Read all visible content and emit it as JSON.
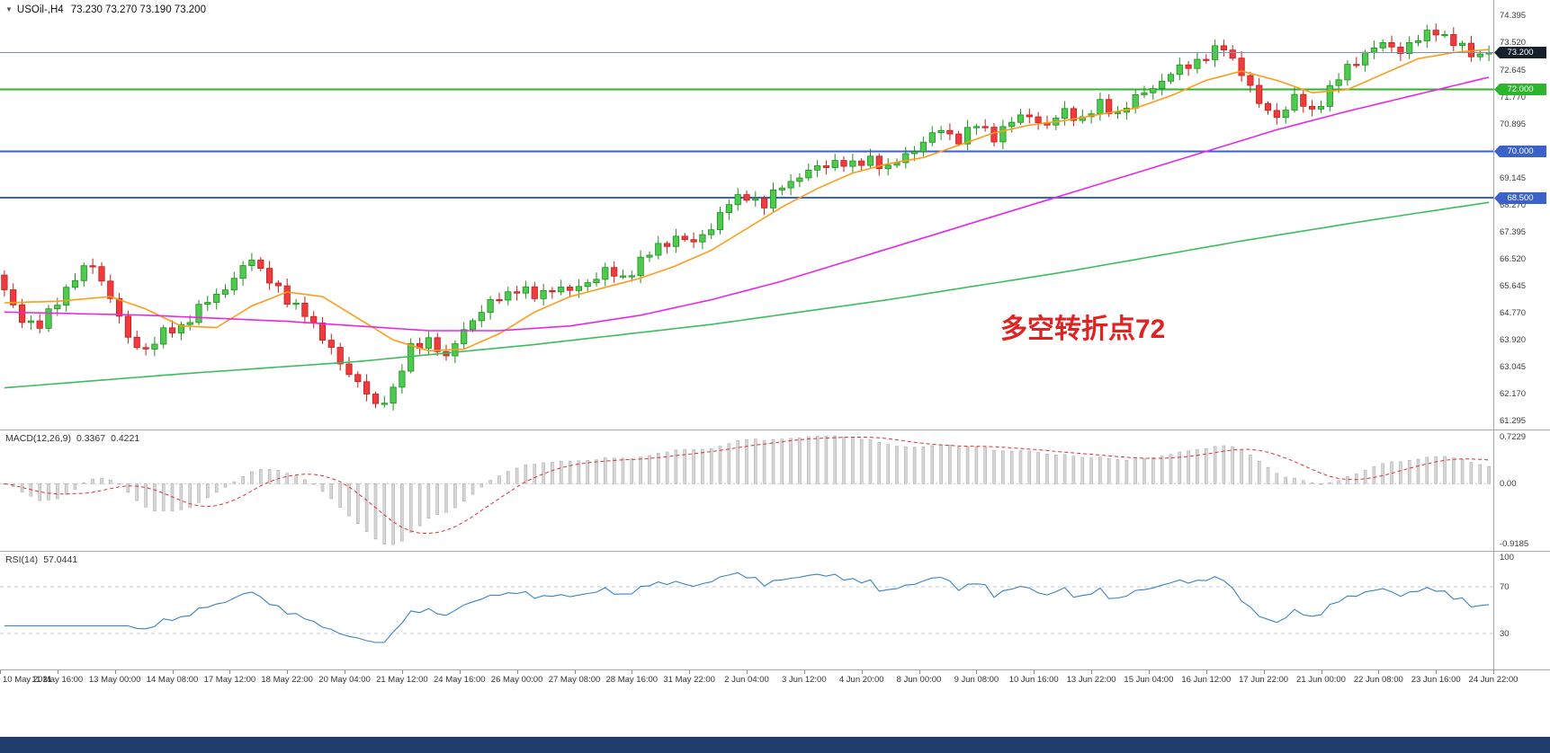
{
  "header": {
    "dropdown_icon": "▼",
    "title": "USOil-,H4",
    "ohlc": "73.230 73.270 73.190 73.200"
  },
  "chart_data": {
    "type": "candlestick",
    "symbol": "USOil-",
    "timeframe": "H4",
    "ohlc_current": {
      "open": "73.230",
      "high": "73.270",
      "low": "73.190",
      "close": "73.200"
    },
    "price_axis": {
      "range": [
        61.0,
        74.9
      ],
      "labels": [
        "74.395",
        "73.520",
        "72.645",
        "71.770",
        "70.895",
        "69.145",
        "68.270",
        "67.395",
        "66.520",
        "65.645",
        "64.770",
        "63.920",
        "63.045",
        "62.170",
        "61.295"
      ],
      "badges": [
        {
          "name": "current-price",
          "value": "73.200",
          "price": 73.2,
          "color": "#15202b"
        },
        {
          "name": "green-level",
          "value": "72.000",
          "price": 72.0,
          "color": "#2db52d"
        },
        {
          "name": "blue-level-1",
          "value": "70.000",
          "price": 70.0,
          "color": "#3a62c8"
        },
        {
          "name": "blue-level-2",
          "value": "68.500",
          "price": 68.5,
          "color": "#3a62c8"
        }
      ]
    },
    "levels": [
      {
        "role": "current-price-line",
        "price": 73.2,
        "color": "#7d93b2",
        "width": 1
      },
      {
        "role": "horizontal-line-72",
        "price": 72.0,
        "color": "#2db52d",
        "width": 2
      },
      {
        "role": "horizontal-line-70",
        "price": 70.0,
        "color": "#3a62c8",
        "width": 2
      },
      {
        "role": "horizontal-line-685",
        "price": 68.5,
        "color": "#3a62c8",
        "width": 2
      }
    ],
    "time_labels": [
      "10 May 2021",
      "11 May 16:00",
      "13 May 00:00",
      "14 May 08:00",
      "17 May 12:00",
      "18 May 22:00",
      "20 May 04:00",
      "21 May 12:00",
      "24 May 16:00",
      "26 May 00:00",
      "27 May 08:00",
      "28 May 16:00",
      "31 May 22:00",
      "2 Jun 04:00",
      "3 Jun 12:00",
      "4 Jun 20:00",
      "8 Jun 00:00",
      "9 Jun 08:00",
      "10 Jun 16:00",
      "13 Jun 22:00",
      "15 Jun 04:00",
      "16 Jun 12:00",
      "17 Jun 22:00",
      "21 Jun 00:00",
      "22 Jun 08:00",
      "23 Jun 16:00",
      "24 Jun 22:00"
    ],
    "candles": {
      "count": 169,
      "first_open": 66.0,
      "last_close": 73.2,
      "up_fill": "#4ecb4e",
      "up_stroke": "#1d8f1d",
      "down_fill": "#ef3b3b",
      "down_stroke": "#c11f1f",
      "close_waypoints": [
        [
          0,
          65.45
        ],
        [
          2,
          64.6
        ],
        [
          4,
          64.3
        ],
        [
          6,
          65.2
        ],
        [
          8,
          65.9
        ],
        [
          10,
          66.35
        ],
        [
          12,
          65.3
        ],
        [
          14,
          63.9
        ],
        [
          16,
          63.6
        ],
        [
          18,
          64.1
        ],
        [
          20,
          64.35
        ],
        [
          22,
          64.9
        ],
        [
          24,
          65.35
        ],
        [
          26,
          65.9
        ],
        [
          28,
          66.5
        ],
        [
          30,
          65.9
        ],
        [
          32,
          65.1
        ],
        [
          34,
          64.85
        ],
        [
          36,
          63.9
        ],
        [
          38,
          63.2
        ],
        [
          40,
          62.5
        ],
        [
          42,
          61.75
        ],
        [
          44,
          62.3
        ],
        [
          46,
          63.6
        ],
        [
          48,
          63.95
        ],
        [
          50,
          63.25
        ],
        [
          52,
          64.3
        ],
        [
          54,
          64.8
        ],
        [
          56,
          65.3
        ],
        [
          58,
          65.55
        ],
        [
          60,
          65.3
        ],
        [
          62,
          65.6
        ],
        [
          64,
          65.45
        ],
        [
          66,
          65.8
        ],
        [
          68,
          66.1
        ],
        [
          70,
          65.9
        ],
        [
          72,
          66.45
        ],
        [
          74,
          66.9
        ],
        [
          76,
          67.25
        ],
        [
          78,
          67.0
        ],
        [
          80,
          67.6
        ],
        [
          82,
          68.3
        ],
        [
          84,
          68.6
        ],
        [
          86,
          68.25
        ],
        [
          88,
          68.9
        ],
        [
          90,
          69.2
        ],
        [
          92,
          69.45
        ],
        [
          94,
          69.7
        ],
        [
          96,
          69.5
        ],
        [
          98,
          69.8
        ],
        [
          100,
          69.4
        ],
        [
          102,
          69.9
        ],
        [
          104,
          70.3
        ],
        [
          106,
          70.7
        ],
        [
          108,
          70.4
        ],
        [
          110,
          70.85
        ],
        [
          112,
          70.5
        ],
        [
          114,
          70.95
        ],
        [
          116,
          71.2
        ],
        [
          118,
          70.8
        ],
        [
          120,
          71.3
        ],
        [
          122,
          71.05
        ],
        [
          124,
          71.5
        ],
        [
          126,
          71.25
        ],
        [
          128,
          71.7
        ],
        [
          130,
          72.1
        ],
        [
          132,
          72.5
        ],
        [
          134,
          72.8
        ],
        [
          136,
          73.1
        ],
        [
          138,
          73.35
        ],
        [
          140,
          72.6
        ],
        [
          142,
          71.5
        ],
        [
          144,
          71.15
        ],
        [
          146,
          71.7
        ],
        [
          148,
          71.3
        ],
        [
          150,
          72.0
        ],
        [
          152,
          72.7
        ],
        [
          154,
          73.2
        ],
        [
          156,
          73.45
        ],
        [
          158,
          73.3
        ],
        [
          160,
          73.6
        ],
        [
          162,
          73.95
        ],
        [
          164,
          73.5
        ],
        [
          166,
          73.15
        ],
        [
          168,
          73.2
        ]
      ]
    },
    "moving_averages": [
      {
        "name": "fast-ma-line",
        "color": "#ff9c1a",
        "points": [
          [
            0,
            65.1
          ],
          [
            6,
            65.15
          ],
          [
            12,
            65.3
          ],
          [
            16,
            64.9
          ],
          [
            20,
            64.35
          ],
          [
            24,
            64.3
          ],
          [
            28,
            65.0
          ],
          [
            32,
            65.45
          ],
          [
            36,
            65.3
          ],
          [
            40,
            64.6
          ],
          [
            44,
            63.9
          ],
          [
            48,
            63.55
          ],
          [
            52,
            63.6
          ],
          [
            56,
            64.1
          ],
          [
            60,
            64.8
          ],
          [
            64,
            65.3
          ],
          [
            68,
            65.6
          ],
          [
            72,
            65.9
          ],
          [
            76,
            66.3
          ],
          [
            80,
            66.8
          ],
          [
            84,
            67.5
          ],
          [
            88,
            68.2
          ],
          [
            92,
            68.8
          ],
          [
            96,
            69.3
          ],
          [
            100,
            69.6
          ],
          [
            104,
            69.8
          ],
          [
            108,
            70.2
          ],
          [
            112,
            70.6
          ],
          [
            116,
            70.85
          ],
          [
            120,
            71.0
          ],
          [
            124,
            71.2
          ],
          [
            128,
            71.4
          ],
          [
            132,
            71.8
          ],
          [
            136,
            72.3
          ],
          [
            140,
            72.6
          ],
          [
            144,
            72.3
          ],
          [
            148,
            71.9
          ],
          [
            152,
            72.0
          ],
          [
            156,
            72.5
          ],
          [
            160,
            73.0
          ],
          [
            164,
            73.2
          ],
          [
            168,
            73.3
          ]
        ]
      },
      {
        "name": "mid-ma-line",
        "color": "#e628e6",
        "points": [
          [
            0,
            64.8
          ],
          [
            8,
            64.75
          ],
          [
            16,
            64.7
          ],
          [
            24,
            64.6
          ],
          [
            32,
            64.5
          ],
          [
            40,
            64.35
          ],
          [
            48,
            64.2
          ],
          [
            56,
            64.2
          ],
          [
            64,
            64.35
          ],
          [
            72,
            64.7
          ],
          [
            80,
            65.2
          ],
          [
            88,
            65.8
          ],
          [
            96,
            66.5
          ],
          [
            104,
            67.2
          ],
          [
            112,
            67.9
          ],
          [
            120,
            68.6
          ],
          [
            128,
            69.3
          ],
          [
            136,
            70.0
          ],
          [
            144,
            70.7
          ],
          [
            152,
            71.3
          ],
          [
            160,
            71.85
          ],
          [
            168,
            72.4
          ]
        ]
      },
      {
        "name": "slow-ma-line",
        "color": "#3dbd5d",
        "points": [
          [
            0,
            62.35
          ],
          [
            20,
            62.8
          ],
          [
            40,
            63.2
          ],
          [
            60,
            63.75
          ],
          [
            80,
            64.4
          ],
          [
            100,
            65.2
          ],
          [
            120,
            66.1
          ],
          [
            140,
            67.1
          ],
          [
            154,
            67.75
          ],
          [
            168,
            68.35
          ]
        ]
      }
    ],
    "annotation": {
      "text": "多空转折点72",
      "color": "#e02222"
    },
    "macd": {
      "label": "MACD(12,26,9)",
      "main_value": "0.3367",
      "signal_value": "0.4221",
      "axis_max": 0.7229,
      "axis_min": -0.9185,
      "axis_labels": [
        "0.7229",
        "0.00",
        "-0.9185"
      ],
      "bar_color": "#d6d6d6",
      "signal_color": "#e03030"
    },
    "rsi": {
      "label": "RSI(14)",
      "value": "57.0441",
      "axis_labels": [
        "100",
        "70",
        "30"
      ],
      "levels": [
        70,
        30
      ],
      "line_color": "#3b82c4"
    }
  }
}
